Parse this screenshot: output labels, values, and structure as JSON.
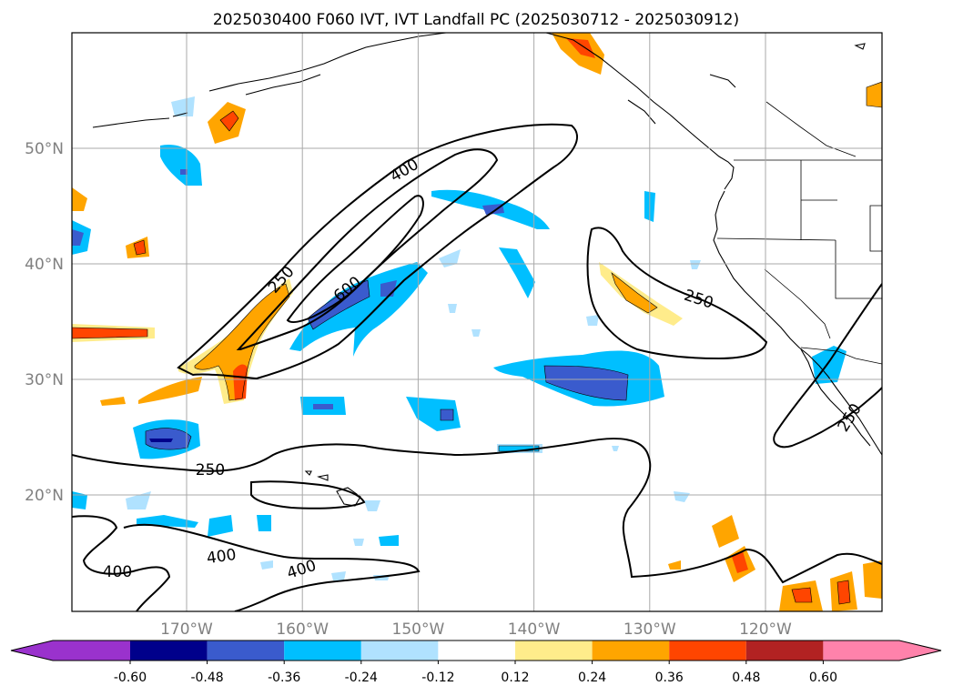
{
  "title": "2025030400 F060 IVT, IVT Landfall PC (2025030712 - 2025030912)",
  "map": {
    "lon_ticks": [
      {
        "label": "170°W",
        "lon": -170
      },
      {
        "label": "160°W",
        "lon": -160
      },
      {
        "label": "150°W",
        "lon": -150
      },
      {
        "label": "140°W",
        "lon": -140
      },
      {
        "label": "130°W",
        "lon": -130
      },
      {
        "label": "120°W",
        "lon": -120
      }
    ],
    "lat_ticks": [
      {
        "label": "50°N",
        "lat": 50
      },
      {
        "label": "40°N",
        "lat": 40
      },
      {
        "label": "30°N",
        "lat": 30
      },
      {
        "label": "20°N",
        "lat": 20
      }
    ],
    "contour_labels": [
      {
        "text": "400",
        "id": "ivt-label-400-north"
      },
      {
        "text": "250",
        "id": "ivt-label-250-northwest"
      },
      {
        "text": "600",
        "id": "ivt-label-600"
      },
      {
        "text": "250",
        "id": "ivt-label-250-east"
      },
      {
        "text": "250",
        "id": "ivt-label-250-baja"
      },
      {
        "text": "250",
        "id": "ivt-label-250-south"
      },
      {
        "text": "400",
        "id": "ivt-label-400-south-a"
      },
      {
        "text": "400",
        "id": "ivt-label-400-south-b"
      },
      {
        "text": "400",
        "id": "ivt-label-400-southwest"
      }
    ]
  },
  "colorbar": {
    "colors": [
      "#9a32cd",
      "#00008b",
      "#3a5bcd",
      "#00bfff",
      "#b0e2ff",
      "#ffffff",
      "#ffec8b",
      "#ffa500",
      "#ff4500",
      "#b22222",
      "#ff82ab"
    ],
    "ticks": [
      "-0.60",
      "-0.48",
      "-0.36",
      "-0.24",
      "-0.12",
      "0.12",
      "0.24",
      "0.36",
      "0.48",
      "0.60"
    ]
  }
}
